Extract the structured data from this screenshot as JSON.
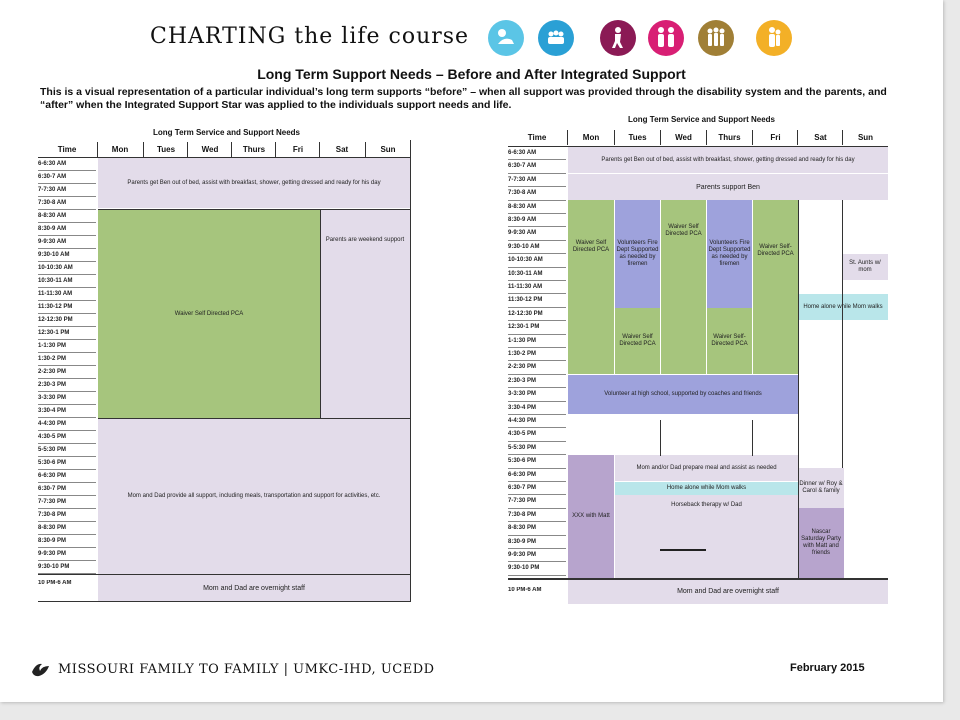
{
  "header": {
    "title": "CHARTING the life course",
    "icons": [
      {
        "name": "baby-icon",
        "color": "#5bc5e6"
      },
      {
        "name": "children-icon",
        "color": "#2aa0d5"
      },
      {
        "name": "person-walking-icon",
        "color": "#8b1a55"
      },
      {
        "name": "family-icon",
        "color": "#d81f74"
      },
      {
        "name": "group-icon",
        "color": "#a07f36"
      },
      {
        "name": "elder-icon",
        "color": "#f3b027"
      }
    ]
  },
  "subtitle": "Long Term Support Needs – Before and After Integrated Support",
  "description": "This is a visual representation of a particular individual’s long term supports “before” – when all support was provided through the disability system and the parents, and “after” when the Integrated Support Star was applied to the individuals support needs and life.",
  "left_table": {
    "title": "Long Term Service and Support Needs",
    "headers": [
      "Time",
      "Mon",
      "Tues",
      "Wed",
      "Thurs",
      "Fri",
      "Sat",
      "Sun"
    ],
    "times": [
      "6-6:30 AM",
      "6:30-7 AM",
      "7-7:30 AM",
      "7:30-8 AM",
      "8-8:30 AM",
      "8:30-9 AM",
      "9-9:30 AM",
      "9:30-10 AM",
      "10-10:30 AM",
      "10:30-11 AM",
      "11-11:30 AM",
      "11:30-12 PM",
      "12-12:30 PM",
      "12:30-1 PM",
      "1-1:30 PM",
      "1:30-2 PM",
      "2-2:30 PM",
      "2:30-3 PM",
      "3-3:30 PM",
      "3:30-4 PM",
      "4-4:30 PM",
      "4:30-5 PM",
      "5-5:30 PM",
      "5:30-6 PM",
      "6-6:30 PM",
      "6:30-7 PM",
      "7-7:30 PM",
      "7:30-8 PM",
      "8-8:30 PM",
      "8:30-9 PM",
      "9-9:30 PM",
      "9:30-10 PM"
    ],
    "overnight_time": "10 PM-6 AM",
    "blocks": {
      "morning": "Parents get Ben out of bed, assist with breakfast, shower, getting dressed and ready for his day",
      "weekday": "Waiver Self Directed PCA",
      "weekend": "Parents are weekend support",
      "evening": "Mom and Dad provide all support, including meals, transportation and support for activities, etc.",
      "overnight": "Mom and Dad are overnight staff"
    }
  },
  "right_table": {
    "title": "Long Term Service and Support Needs",
    "headers": [
      "Time",
      "Mon",
      "Tues",
      "Wed",
      "Thurs",
      "Fri",
      "Sat",
      "Sun"
    ],
    "times": [
      "6-6:30 AM",
      "6:30-7 AM",
      "7-7:30 AM",
      "7:30-8 AM",
      "8-8:30 AM",
      "8:30-9 AM",
      "9-9:30 AM",
      "9:30-10 AM",
      "10-10:30 AM",
      "10:30-11 AM",
      "11-11:30 AM",
      "11:30-12 PM",
      "12-12:30 PM",
      "12:30-1 PM",
      "1-1:30 PM",
      "1:30-2 PM",
      "2-2:30 PM",
      "2:30-3 PM",
      "3-3:30 PM",
      "3:30-4 PM",
      "4-4:30 PM",
      "4:30-5 PM",
      "5-5:30 PM",
      "5:30-6 PM",
      "6-6:30 PM",
      "6:30-7 PM",
      "7-7:30 PM",
      "7:30-8 PM",
      "8-8:30 PM",
      "8:30-9 PM",
      "9-9:30 PM",
      "9:30-10 PM"
    ],
    "overnight_time": "10 PM-6 AM",
    "blocks": {
      "morning": "Parents get Ben out of bed, assist with breakfast, shower, getting dressed and ready for his day",
      "parents_support": "Parents support Ben",
      "mon_pca": "Waiver Self Directed PCA",
      "tue_volunteers": "Volunteers Fire Dept Supported as needed by firemen",
      "wed_pca": "Waiver Self Directed PCA",
      "thu_volunteers": "Volunteers Fire Dept Supported as needed by firemen",
      "fri_pca": "Waiver Self-Directed PCA",
      "sun_aunts": "St. Aunts w/ mom",
      "sat_home": "Home alone while Mom walks",
      "tue_pca": "Waiver Self Directed PCA",
      "thu_pca": "Waiver Self-Directed PCA",
      "highschool": "Volunteer at high school, supported by coaches and friends",
      "mon_xxx": "XXX with Matt",
      "dinner_prep": "Mom and/or Dad prepare meal and assist as needed",
      "home_alone": "Home alone while Mom walks",
      "wed_horseback": "Horseback therapy w/ Dad",
      "sat_dinner": "Dinner w/ Roy & Carol & family",
      "sat_nascar": "Nascar Saturday Party with Matt and friends",
      "overnight": "Mom and Dad are overnight staff"
    }
  },
  "footer": {
    "org": "MISSOURI FAMILY TO FAMILY | UMKC-IHD, UCEDD",
    "date": "February 2015"
  }
}
